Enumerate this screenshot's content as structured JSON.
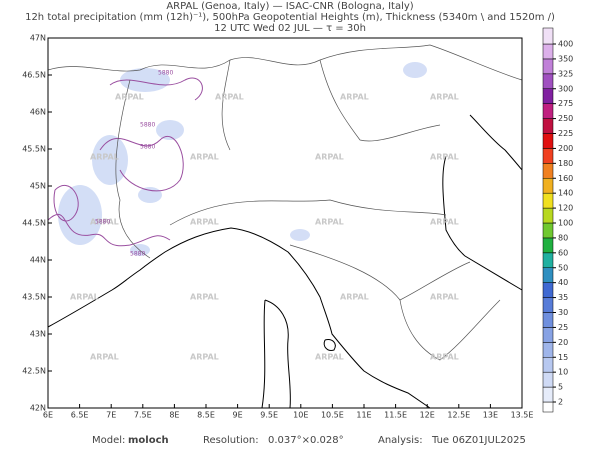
{
  "title_lines": [
    "ARPAL (Genoa, Italy)  —  ISAC-CNR (Bologna, Italy)",
    "12h total precipitation (mm (12h)⁻¹), 500hPa Geopotential Heights (m), Thickness (5340m \\ and 1520m /)",
    "12 UTC Wed 02 JUL  —  τ = 30h"
  ],
  "map": {
    "lonlim": [
      6,
      13.5
    ],
    "latlim": [
      42,
      47
    ],
    "lonticks": [
      {
        "value": 6,
        "label": "6E"
      },
      {
        "value": 6.5,
        "label": "6.5E"
      },
      {
        "value": 7,
        "label": "7E"
      },
      {
        "value": 7.5,
        "label": "7.5E"
      },
      {
        "value": 8,
        "label": "8E"
      },
      {
        "value": 8.5,
        "label": "8.5E"
      },
      {
        "value": 9,
        "label": "9E"
      },
      {
        "value": 9.5,
        "label": "9.5E"
      },
      {
        "value": 10,
        "label": "10E"
      },
      {
        "value": 10.5,
        "label": "10.5E"
      },
      {
        "value": 11,
        "label": "11E"
      },
      {
        "value": 11.5,
        "label": "11.5E"
      },
      {
        "value": 12,
        "label": "12E"
      },
      {
        "value": 12.5,
        "label": "12.5E"
      },
      {
        "value": 13,
        "label": "13E"
      },
      {
        "value": 13.5,
        "label": "13.5E"
      }
    ],
    "latticks": [
      {
        "value": 42,
        "label": "42N"
      },
      {
        "value": 42.5,
        "label": "42.5N"
      },
      {
        "value": 43,
        "label": "43N"
      },
      {
        "value": 43.5,
        "label": "43.5N"
      },
      {
        "value": 44,
        "label": "44N"
      },
      {
        "value": 44.5,
        "label": "44.5N"
      },
      {
        "value": 45,
        "label": "45N"
      },
      {
        "value": 45.5,
        "label": "45.5N"
      },
      {
        "value": 46,
        "label": "46N"
      },
      {
        "value": 46.5,
        "label": "46.5N"
      },
      {
        "value": 47,
        "label": "47N"
      }
    ],
    "watermark": "ARPAL",
    "contour_label": "5880"
  },
  "colorbar": {
    "levels": [
      2,
      5,
      10,
      15,
      20,
      25,
      30,
      35,
      40,
      50,
      60,
      80,
      100,
      120,
      140,
      160,
      180,
      200,
      225,
      250,
      275,
      300,
      325,
      350,
      400
    ],
    "colors": [
      "#ffffff",
      "#e6ecfa",
      "#cfdaf5",
      "#b7c8f0",
      "#9fb5ea",
      "#87a2e4",
      "#6f8fde",
      "#577cd8",
      "#3f69d2",
      "#2f8fc0",
      "#20b0a0",
      "#20b040",
      "#70c830",
      "#b8d820",
      "#f0e020",
      "#f0b020",
      "#f08020",
      "#f04020",
      "#e01010",
      "#c01040",
      "#c02080",
      "#8020a0",
      "#a050c0",
      "#c080d8",
      "#dcb0ea",
      "#f0e0f6"
    ]
  },
  "footer": [
    {
      "label": "Model:",
      "value": "moloch"
    },
    {
      "label": "Resolution:",
      "value": "0.037°×0.028°"
    },
    {
      "label": "Analysis:",
      "value": "Tue 06Z01JUL2025"
    }
  ]
}
